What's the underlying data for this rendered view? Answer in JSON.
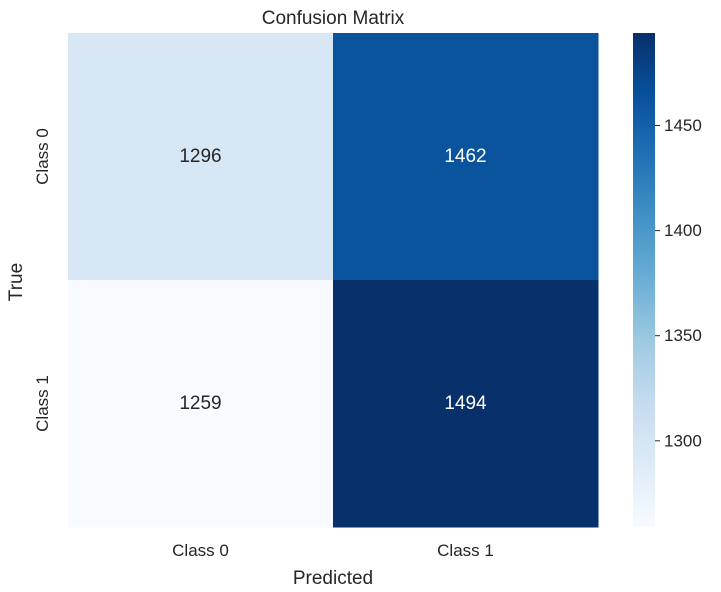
{
  "chart_data": {
    "type": "heatmap",
    "title": "Confusion Matrix",
    "xlabel": "Predicted",
    "ylabel": "True",
    "x_categories": [
      "Class 0",
      "Class 1"
    ],
    "y_categories": [
      "Class 0",
      "Class 1"
    ],
    "values": [
      [
        1296,
        1462
      ],
      [
        1259,
        1494
      ]
    ],
    "colormap": "Blues",
    "colorbar": {
      "range": [
        1259,
        1494
      ],
      "ticks": [
        1300,
        1350,
        1400,
        1450
      ],
      "tick_labels": [
        "1300",
        "1350",
        "1400",
        "1450"
      ]
    },
    "grid": false,
    "annotations": true
  }
}
